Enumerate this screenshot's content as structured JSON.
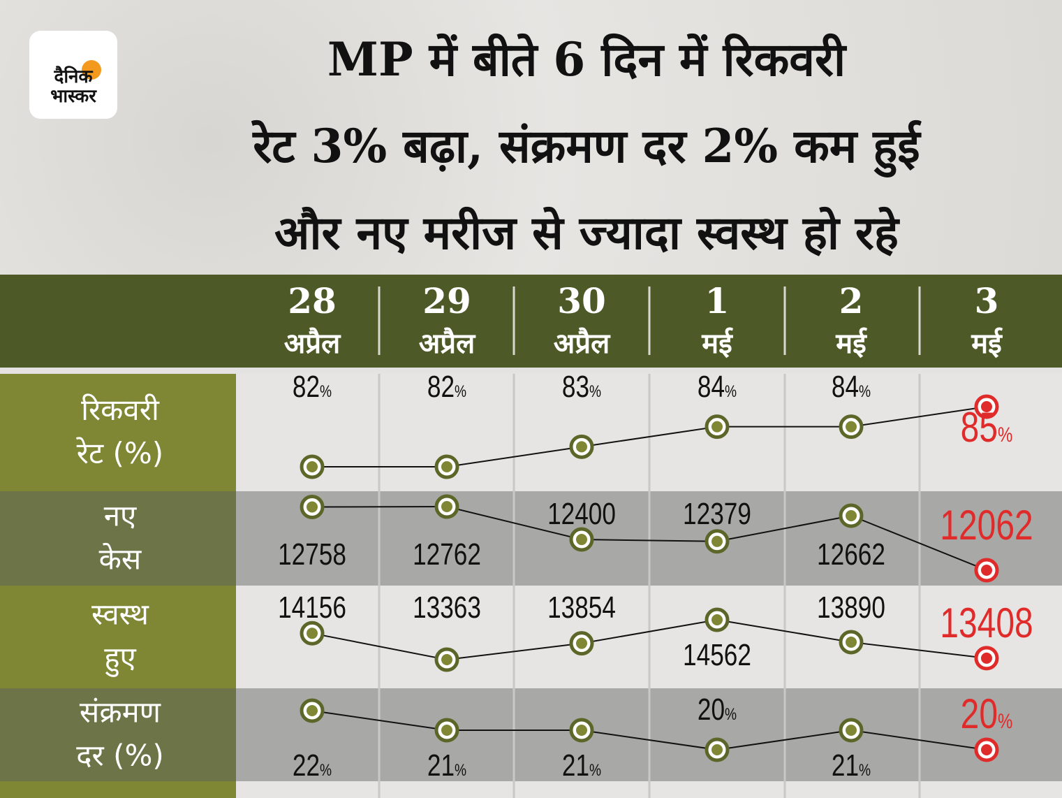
{
  "logo": {
    "line1": "दैनिक",
    "line2": "भास्कर",
    "sun_color": "#f39a1e"
  },
  "title": [
    "MP में बीते 6 दिन में रिकवरी",
    "रेट 3% बढ़ा, संक्रमण दर 2% कम हुई",
    "और नए मरीज से ज्यादा स्वस्थ हो रहे"
  ],
  "colors": {
    "header": "#4d5a28",
    "label_light": "#7f8634",
    "label_dark": "#6d7447",
    "band_gray": "#a8a8a6",
    "band_light": "#e6e5e3",
    "point": "#5c6628",
    "highlight": "#e02b2b"
  },
  "chart_data": {
    "type": "line",
    "categories": [
      {
        "day": "28",
        "month": "अप्रैल"
      },
      {
        "day": "29",
        "month": "अप्रैल"
      },
      {
        "day": "30",
        "month": "अप्रैल"
      },
      {
        "day": "1",
        "month": "मई"
      },
      {
        "day": "2",
        "month": "मई"
      },
      {
        "day": "3",
        "month": "मई"
      }
    ],
    "series": [
      {
        "name_line1": "रिकवरी",
        "name_line2": "रेट (%)",
        "unit": "%",
        "values": [
          82,
          82,
          83,
          84,
          84,
          85
        ]
      },
      {
        "name_line1": "नए",
        "name_line2": "केस",
        "unit": "",
        "values": [
          12758,
          12762,
          12400,
          12379,
          12662,
          12062
        ]
      },
      {
        "name_line1": "स्वस्थ",
        "name_line2": "हुए",
        "unit": "",
        "values": [
          14156,
          13363,
          13854,
          14562,
          13890,
          13408
        ]
      },
      {
        "name_line1": "संक्रमण",
        "name_line2": "दर (%)",
        "unit": "%",
        "values": [
          22,
          21,
          21,
          20,
          21,
          20
        ]
      }
    ],
    "highlight": "last point in red"
  }
}
